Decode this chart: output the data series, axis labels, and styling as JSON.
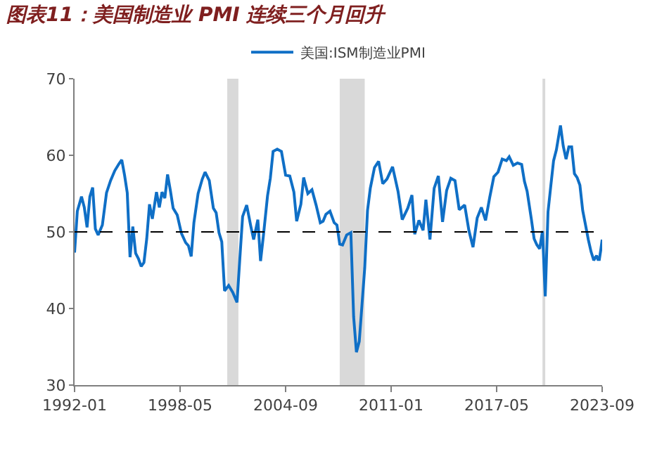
{
  "chart_data": {
    "type": "line",
    "title": "图表11：美国制造业 PMI 连续三个月回升",
    "x": [
      "1992-01",
      "1992-03",
      "1992-06",
      "1992-08",
      "1992-10",
      "1992-12",
      "1993-02",
      "1993-04",
      "1993-06",
      "1993-09",
      "1993-12",
      "1994-03",
      "1994-06",
      "1994-09",
      "1994-11",
      "1995-01",
      "1995-03",
      "1995-05",
      "1995-07",
      "1995-09",
      "1995-11",
      "1996-01",
      "1996-03",
      "1996-05",
      "1996-07",
      "1996-09",
      "1996-12",
      "1997-02",
      "1997-04",
      "1997-06",
      "1997-08",
      "1997-10",
      "1997-12",
      "1998-03",
      "1998-06",
      "1998-09",
      "1998-11",
      "1999-01",
      "1999-03",
      "1999-06",
      "1999-09",
      "1999-11",
      "2000-02",
      "2000-05",
      "2000-07",
      "2000-09",
      "2000-11",
      "2001-01",
      "2001-04",
      "2001-07",
      "2001-10",
      "2001-12",
      "2002-02",
      "2002-05",
      "2002-08",
      "2002-10",
      "2003-01",
      "2003-03",
      "2003-05",
      "2003-08",
      "2003-10",
      "2003-12",
      "2004-03",
      "2004-06",
      "2004-09",
      "2004-12",
      "2005-03",
      "2005-05",
      "2005-08",
      "2005-10",
      "2006-01",
      "2006-04",
      "2006-07",
      "2006-10",
      "2006-12",
      "2007-02",
      "2007-05",
      "2007-08",
      "2007-10",
      "2007-12",
      "2008-02",
      "2008-05",
      "2008-08",
      "2008-10",
      "2008-12",
      "2009-02",
      "2009-04",
      "2009-06",
      "2009-08",
      "2009-10",
      "2010-01",
      "2010-04",
      "2010-07",
      "2010-10",
      "2011-02",
      "2011-06",
      "2011-09",
      "2012-01",
      "2012-04",
      "2012-06",
      "2012-09",
      "2012-12",
      "2013-02",
      "2013-05",
      "2013-08",
      "2013-11",
      "2014-02",
      "2014-05",
      "2014-08",
      "2014-11",
      "2015-02",
      "2015-06",
      "2015-09",
      "2015-12",
      "2016-03",
      "2016-06",
      "2016-09",
      "2016-12",
      "2017-03",
      "2017-06",
      "2017-09",
      "2017-12",
      "2018-02",
      "2018-05",
      "2018-08",
      "2018-11",
      "2019-01",
      "2019-03",
      "2019-06",
      "2019-08",
      "2019-10",
      "2019-12",
      "2020-02",
      "2020-04",
      "2020-06",
      "2020-08",
      "2020-10",
      "2020-12",
      "2021-03",
      "2021-05",
      "2021-07",
      "2021-09",
      "2021-11",
      "2022-01",
      "2022-03",
      "2022-05",
      "2022-07",
      "2022-09",
      "2022-11",
      "2023-01",
      "2023-03",
      "2023-05",
      "2023-06",
      "2023-07",
      "2023-08",
      "2023-09"
    ],
    "series": [
      {
        "name": "美国:ISM制造业PMI",
        "color": "#0f6fc6",
        "values": [
          47.3,
          52.7,
          54.6,
          53.2,
          50.6,
          54.6,
          55.8,
          50.4,
          49.6,
          50.9,
          55.1,
          56.7,
          58.0,
          58.9,
          59.4,
          57.4,
          55.1,
          46.7,
          50.7,
          47.2,
          46.5,
          45.5,
          46.0,
          49.1,
          53.6,
          51.7,
          55.2,
          53.2,
          55.2,
          54.4,
          57.5,
          55.4,
          53.1,
          52.2,
          49.8,
          48.6,
          48.2,
          46.8,
          51.2,
          55.0,
          56.9,
          57.8,
          56.7,
          53.1,
          52.5,
          49.9,
          48.7,
          42.3,
          43.0,
          42.1,
          40.8,
          46.4,
          52.0,
          53.5,
          50.7,
          49.0,
          51.6,
          46.2,
          49.4,
          54.7,
          57.0,
          60.5,
          60.8,
          60.5,
          57.4,
          57.3,
          55.2,
          51.4,
          53.6,
          57.1,
          55.0,
          55.5,
          53.5,
          51.2,
          51.4,
          52.3,
          52.7,
          51.2,
          50.9,
          48.4,
          48.3,
          49.6,
          49.9,
          38.9,
          34.3,
          35.7,
          40.4,
          45.3,
          52.8,
          55.7,
          58.4,
          59.2,
          56.3,
          56.9,
          58.5,
          55.3,
          51.6,
          53.1,
          54.8,
          49.7,
          51.5,
          50.2,
          54.2,
          49.0,
          55.7,
          57.3,
          51.3,
          55.4,
          57.0,
          56.7,
          52.9,
          53.5,
          50.2,
          48.0,
          51.8,
          53.2,
          51.5,
          54.5,
          57.2,
          57.8,
          59.5,
          59.3,
          59.8,
          58.7,
          59.0,
          58.8,
          56.6,
          55.3,
          51.7,
          49.1,
          48.3,
          47.8,
          50.1,
          41.6,
          52.6,
          56.0,
          59.3,
          60.7,
          63.9,
          61.2,
          59.5,
          61.1,
          61.1,
          57.6,
          57.1,
          56.1,
          52.8,
          50.9,
          49.0,
          47.4,
          46.3,
          46.9,
          46.4,
          46.4,
          47.6,
          49.0
        ]
      }
    ],
    "xlim": [
      "1992-01",
      "2023-09"
    ],
    "xticks": [
      "1992-01",
      "1998-05",
      "2004-09",
      "2011-01",
      "2017-05",
      "2023-09"
    ],
    "ylim": [
      30,
      70
    ],
    "yticks": [
      30,
      40,
      50,
      60,
      70
    ],
    "ref_lines": [
      {
        "axis": "y",
        "value": 50,
        "color": "#000000",
        "line_style": "dashed"
      }
    ],
    "bands": [
      {
        "axis": "x",
        "from": "2001-03",
        "to": "2001-11",
        "color": "#d9d9d9"
      },
      {
        "axis": "x",
        "from": "2007-12",
        "to": "2009-06",
        "color": "#d9d9d9"
      },
      {
        "axis": "x",
        "from": "2020-02",
        "to": "2020-04",
        "color": "#d9d9d9"
      }
    ],
    "legend": "top",
    "grid": false,
    "marker": "none",
    "line_style": "solid"
  }
}
